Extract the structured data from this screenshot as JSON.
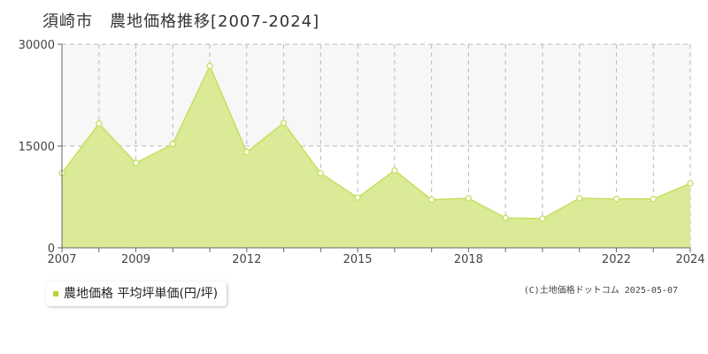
{
  "chart_data": {
    "type": "area",
    "title": "須崎市　農地価格推移[2007-2024]",
    "x": [
      2007,
      2008,
      2009,
      2010,
      2011,
      2012,
      2013,
      2014,
      2015,
      2016,
      2017,
      2018,
      2019,
      2020,
      2021,
      2022,
      2023,
      2024
    ],
    "series": [
      {
        "name": "農地価格 平均坪単価(円/坪)",
        "values": [
          11000,
          18300,
          12500,
          15300,
          26800,
          14100,
          18400,
          11000,
          7400,
          11400,
          7100,
          7300,
          4400,
          4300,
          7300,
          7200,
          7200,
          9500
        ]
      }
    ],
    "x_tick_labels": [
      "2007",
      "2009",
      "2012",
      "2015",
      "2018",
      "2022",
      "2024"
    ],
    "x_tick_values": [
      2007,
      2009,
      2012,
      2015,
      2018,
      2022,
      2024
    ],
    "y_tick_labels": [
      "0",
      "15000",
      "30000"
    ],
    "y_tick_values": [
      0,
      15000,
      30000
    ],
    "xlim": [
      2007,
      2024
    ],
    "ylim": [
      0,
      30000
    ],
    "xlabel": "",
    "ylabel": "",
    "grid": true,
    "legend_position": "bottom-left",
    "colors": {
      "fill": "#dbea96",
      "line": "#c5e060",
      "marker_fill": "#ffffff",
      "grid": "#bbbbbb",
      "band": "#f7f7f7"
    }
  },
  "legend": {
    "label": "農地価格 平均坪単価(円/坪)"
  },
  "copyright": "(C)土地価格ドットコム 2025-05-07"
}
